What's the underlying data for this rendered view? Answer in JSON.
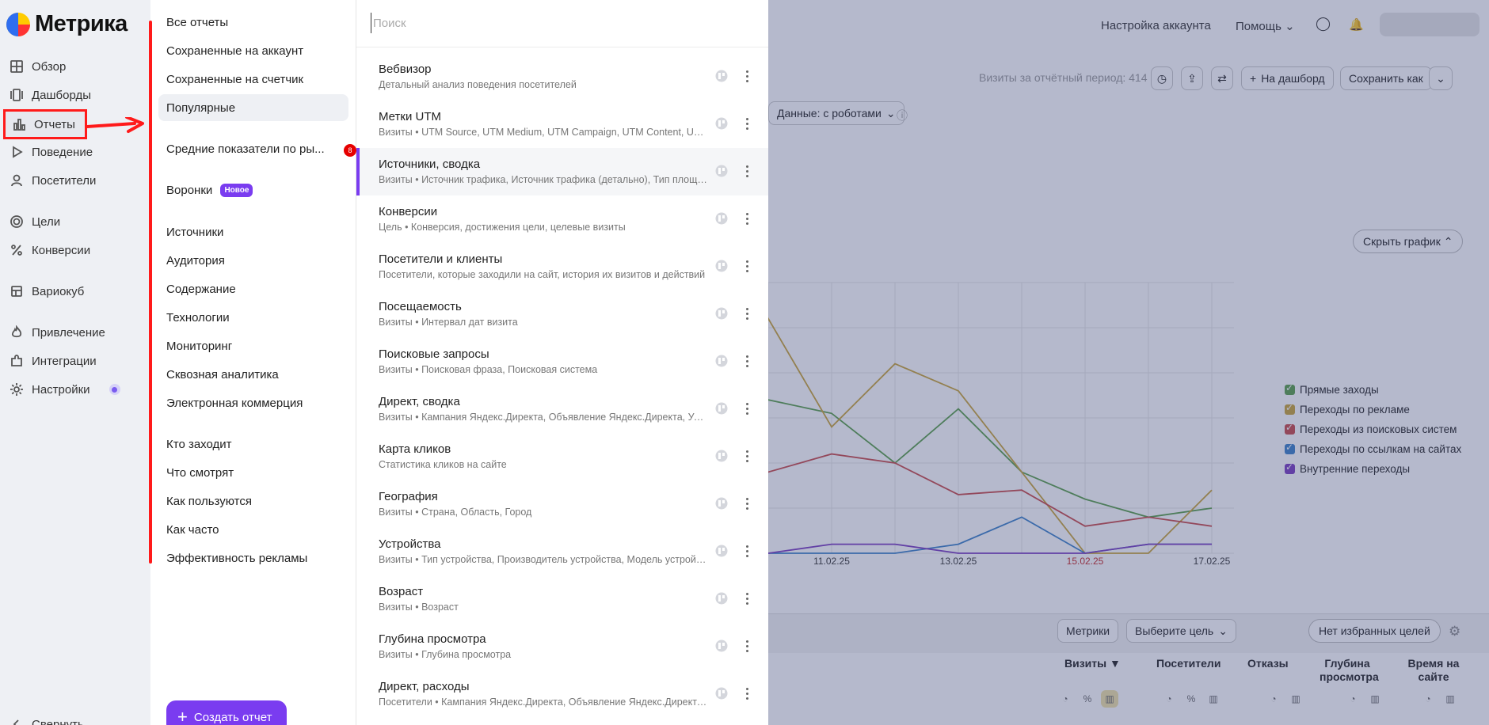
{
  "app": {
    "logo_text": "Метрика"
  },
  "sidenav": {
    "items": [
      {
        "label": "Обзор",
        "icon": "grid-icon"
      },
      {
        "label": "Дашборды",
        "icon": "dashboards-icon"
      },
      {
        "label": "Отчеты",
        "icon": "bar-chart-icon",
        "active": true
      },
      {
        "label": "Поведение",
        "icon": "play-icon"
      },
      {
        "label": "Посетители",
        "icon": "user-icon"
      },
      {
        "label": "Цели",
        "icon": "target-icon"
      },
      {
        "label": "Конверсии",
        "icon": "percent-icon"
      },
      {
        "label": "Вариокуб",
        "icon": "table-icon"
      },
      {
        "label": "Привлечение",
        "icon": "fire-icon"
      },
      {
        "label": "Интеграции",
        "icon": "puzzle-icon"
      },
      {
        "label": "Настройки",
        "icon": "gear-icon"
      },
      {
        "label": "Свернуть",
        "icon": "collapse-icon"
      }
    ]
  },
  "categories": {
    "items": [
      {
        "label": "Все отчеты"
      },
      {
        "label": "Сохраненные на аккаунт"
      },
      {
        "label": "Сохраненные на счетчик"
      },
      {
        "label": "Популярные",
        "selected": true
      },
      {
        "label": "Средние показатели по ры...",
        "badge": "8"
      },
      {
        "label": "Воронки",
        "tag": "Новое"
      },
      {
        "label": "Источники"
      },
      {
        "label": "Аудитория"
      },
      {
        "label": "Содержание"
      },
      {
        "label": "Технологии"
      },
      {
        "label": "Мониторинг"
      },
      {
        "label": "Сквозная аналитика"
      },
      {
        "label": "Электронная коммерция"
      },
      {
        "label": "Кто заходит"
      },
      {
        "label": "Что смотрят"
      },
      {
        "label": "Как пользуются"
      },
      {
        "label": "Как часто"
      },
      {
        "label": "Эффективность рекламы"
      }
    ],
    "create_label": "Создать отчет"
  },
  "search": {
    "placeholder": "Поиск",
    "value": ""
  },
  "reports": [
    {
      "title": "Вебвизор",
      "subtitle": "Детальный анализ поведения посетителей"
    },
    {
      "title": "Метки UTM",
      "subtitle": "Визиты • UTM Source, UTM Medium, UTM Campaign, UTM Content, UTM Term"
    },
    {
      "title": "Источники, сводка",
      "subtitle": "Визиты • Источник трафика, Источник трафика (детально), Тип площадки",
      "highlighted": true
    },
    {
      "title": "Конверсии",
      "subtitle": "Цель • Конверсия, достижения цели, целевые визиты"
    },
    {
      "title": "Посетители и клиенты",
      "subtitle": "Посетители, которые заходили на сайт, история их визитов и действий"
    },
    {
      "title": "Посещаемость",
      "subtitle": "Визиты • Интервал дат визита"
    },
    {
      "title": "Поисковые запросы",
      "subtitle": "Визиты • Поисковая фраза, Поисковая система"
    },
    {
      "title": "Директ, сводка",
      "subtitle": "Визиты • Кампания Яндекс.Директа, Объявление Яндекс.Директа, Условие показа"
    },
    {
      "title": "Карта кликов",
      "subtitle": "Статистика кликов на сайте"
    },
    {
      "title": "География",
      "subtitle": "Визиты • Страна, Область, Город"
    },
    {
      "title": "Устройства",
      "subtitle": "Визиты • Тип устройства, Производитель устройства, Модель устройства"
    },
    {
      "title": "Возраст",
      "subtitle": "Визиты • Возраст"
    },
    {
      "title": "Глубина просмотра",
      "subtitle": "Визиты • Глубина просмотра"
    },
    {
      "title": "Директ, расходы",
      "subtitle": "Посетители • Кампания Яндекс.Директа, Объявление Яндекс.Директа, Условие показа"
    }
  ],
  "background": {
    "topbar": {
      "account_settings": "Настройка аккаунта",
      "help": "Помощь"
    },
    "visits_summary": "Визиты за отчётный период: 414",
    "add_dashboard": "На дашборд",
    "save_as": "Сохранить как",
    "data_filter": "Данные: с роботами",
    "hide_chart": "Скрыть график",
    "metrics_button": "Метрики",
    "goal_select": "Выберите цель",
    "favorites": "Нет избранных целей",
    "columns": [
      "Визиты",
      "Посетители",
      "Отказы",
      "Глубина просмотра",
      "Время на сайте"
    ],
    "sort_indicator": "▼"
  },
  "chart_data": {
    "type": "line",
    "x": [
      "09.02.25",
      "10.02.25",
      "11.02.25",
      "12.02.25",
      "13.02.25",
      "14.02.25",
      "15.02.25",
      "16.02.25",
      "17.02.25"
    ],
    "tick_labels": [
      "11.02.25",
      "13.02.25",
      "15.02.25",
      "17.02.25"
    ],
    "weekend_tick": "15.02.25",
    "ylim": [
      0,
      30
    ],
    "series": [
      {
        "name": "Прямые заходы",
        "color": "#5a9e4a",
        "values": [
          12,
          17,
          15.5,
          10,
          16,
          9,
          6,
          4,
          5
        ]
      },
      {
        "name": "Переходы по рекламе",
        "color": "#c9a437",
        "values": [
          16,
          26,
          14,
          21,
          18,
          9,
          0,
          0,
          7
        ]
      },
      {
        "name": "Переходы из поисковых систем",
        "color": "#c94a4a",
        "values": [
          6,
          9,
          11,
          10,
          6.5,
          7,
          3,
          4,
          3
        ]
      },
      {
        "name": "Переходы по ссылкам на сайтах",
        "color": "#3a80c9",
        "values": [
          0,
          0,
          0,
          0,
          1,
          4,
          0,
          1,
          1
        ]
      },
      {
        "name": "Внутренние переходы",
        "color": "#7a3cc0",
        "values": [
          0,
          0,
          1,
          1,
          0,
          0,
          0,
          1,
          1
        ]
      }
    ]
  }
}
